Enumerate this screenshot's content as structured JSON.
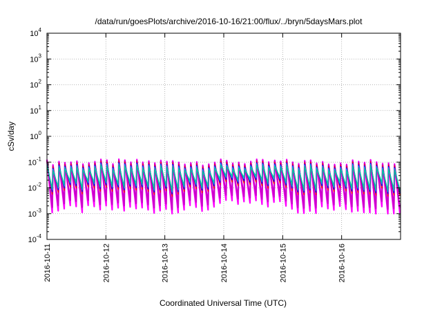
{
  "chart_data": {
    "type": "line",
    "title": "/data/run/goesPlots/archive/2016-10-16/21:00/flux/../bryn/5daysMars.plot",
    "xlabel": "Coordinated Universal Time (UTC)",
    "ylabel": "cSv/day",
    "y_scale": "log",
    "ylim": [
      0.0001,
      10000
    ],
    "xlim": [
      "2016-10-11",
      "2016-10-17"
    ],
    "x_tick_labels": [
      "2016-10-11",
      "2016-10-12",
      "2016-10-13",
      "2016-10-14",
      "2016-10-15",
      "2016-10-16"
    ],
    "y_tick_labels": [
      {
        "base": "10",
        "exp": "-4"
      },
      {
        "base": "10",
        "exp": "-3"
      },
      {
        "base": "10",
        "exp": "-2"
      },
      {
        "base": "10",
        "exp": "-1"
      },
      {
        "base": "10",
        "exp": "0"
      },
      {
        "base": "10",
        "exp": "1"
      },
      {
        "base": "10",
        "exp": "2"
      },
      {
        "base": "10",
        "exp": "3"
      },
      {
        "base": "10",
        "exp": "4"
      }
    ],
    "grid": true,
    "pattern": "sawtooth, about 10 cycles per day",
    "series_colors": [
      "#ff00ff",
      "#cc00cc",
      "#ff0000",
      "#0000ff",
      "#00aaff",
      "#00cc99"
    ],
    "band": {
      "peak_typical": 0.1,
      "peak_max": 0.15,
      "trough_min": 0.001,
      "trough_typical": 0.003
    }
  },
  "colors": {
    "grid": "#a0a0a0",
    "axis": "#000000"
  }
}
